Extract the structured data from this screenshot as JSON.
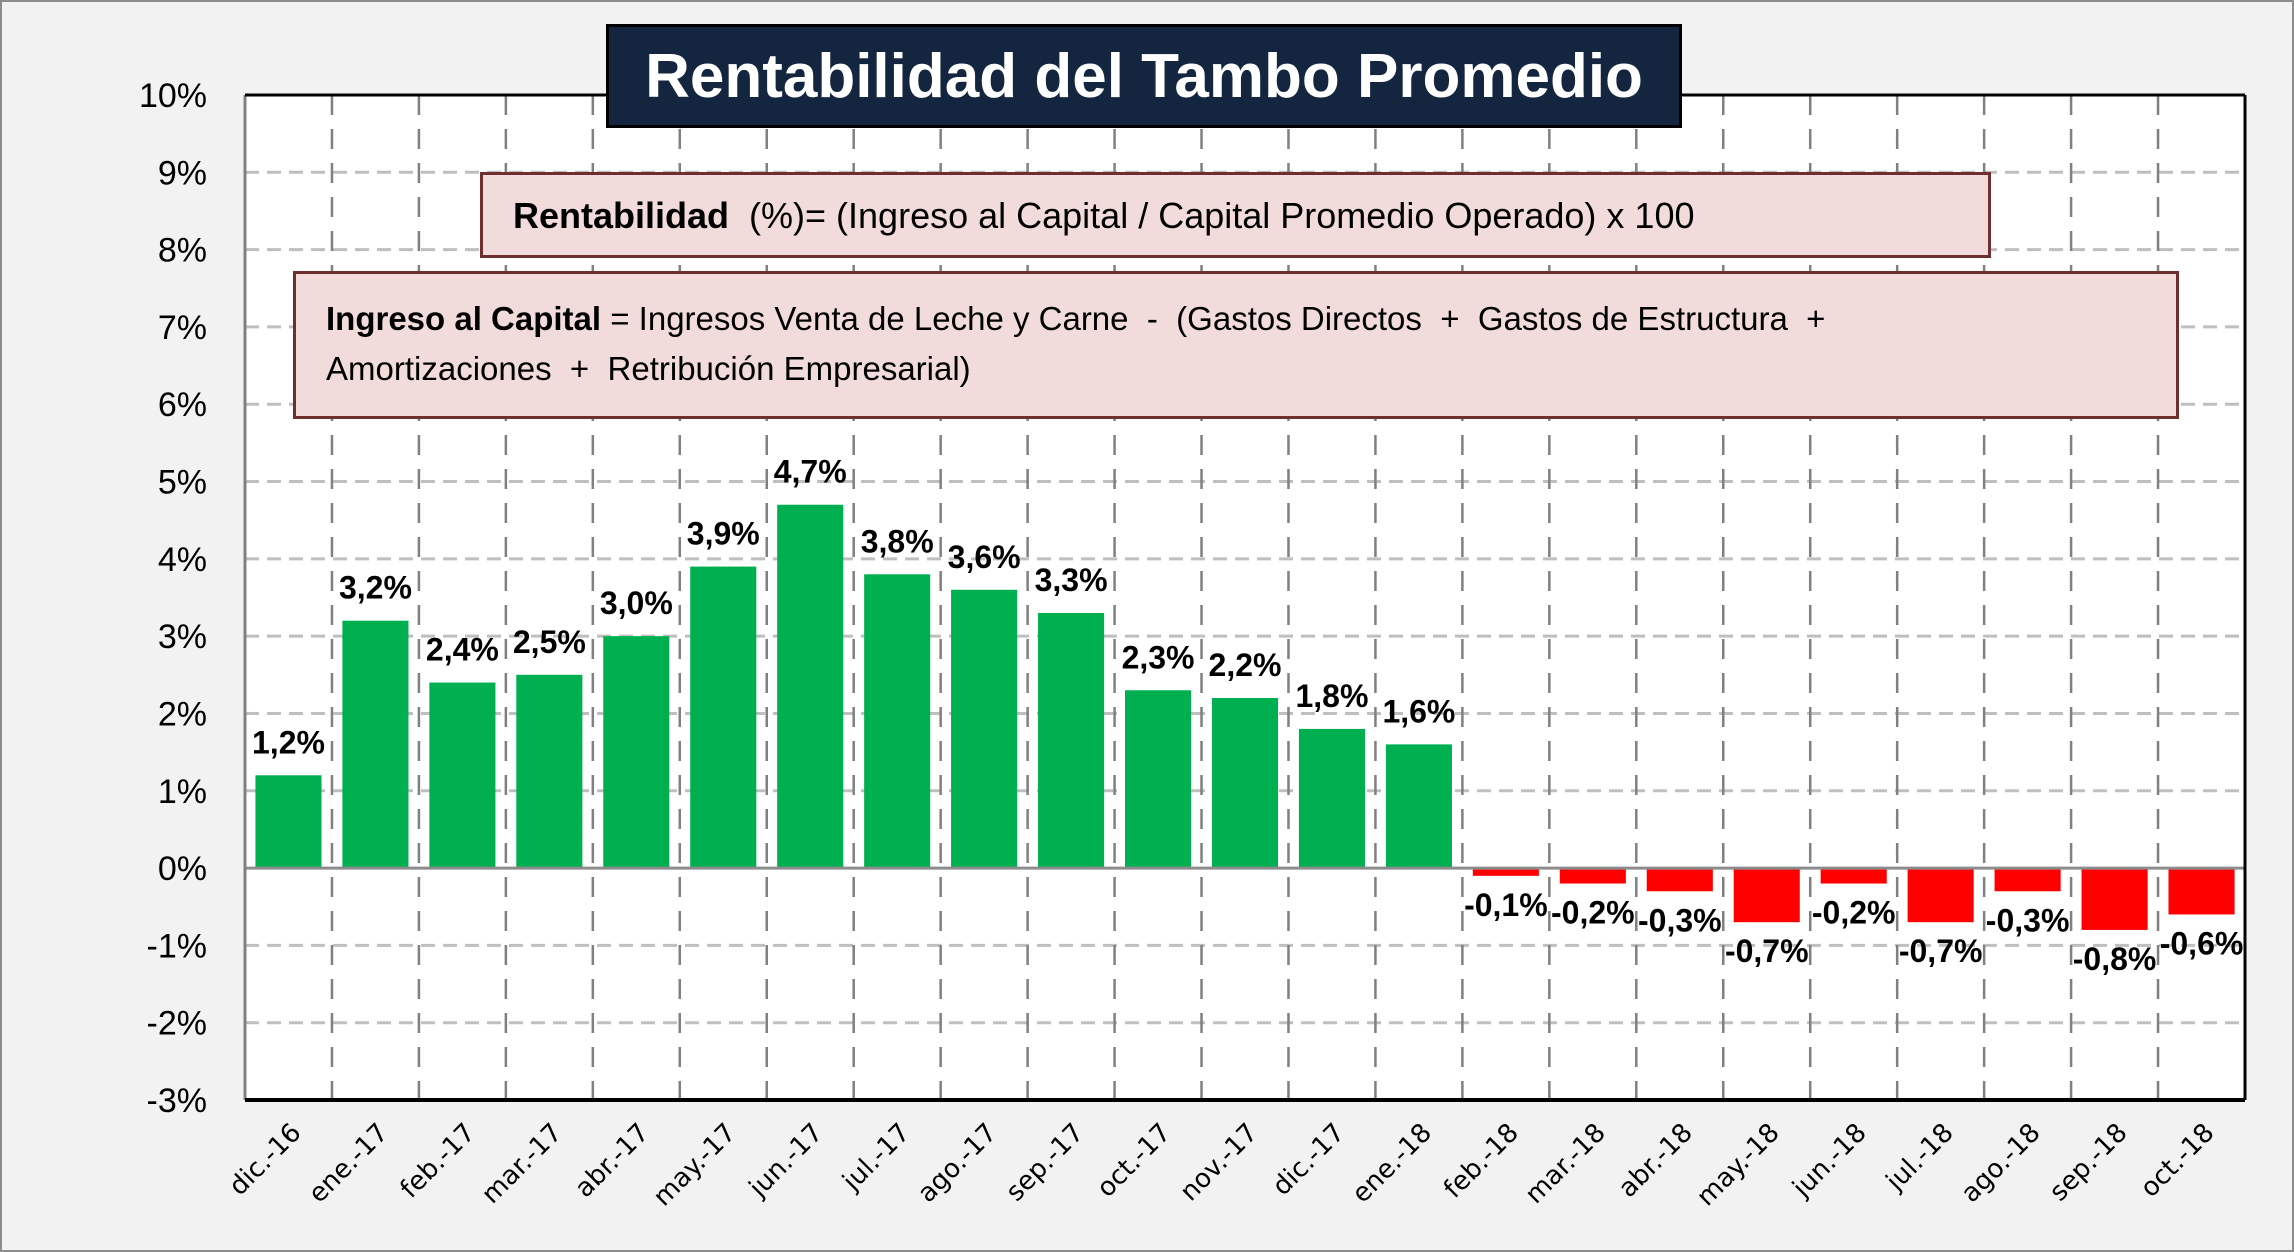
{
  "title": "Rentabilidad del Tambo Promedio",
  "formulas": {
    "rentabilidad": {
      "bold": "Rentabilidad",
      "rest": "  (%)= (Ingreso al Capital / Capital Promedio Operado) x 100"
    },
    "ingreso": {
      "bold": "Ingreso al Capital",
      "line1_rest": " = Ingresos Venta de Leche y Carne  -  (Gastos Directos  +  Gastos de Estructura  +",
      "line2": "Amortizaciones  +  Retribución Empresarial)"
    }
  },
  "colors": {
    "positive": "#00b050",
    "negative": "#ff0000",
    "title_bg": "#13253f",
    "formula_bg": "#f2dcdb",
    "formula_border": "#6f2f2f"
  },
  "chart_data": {
    "type": "bar",
    "title": "Rentabilidad del Tambo Promedio",
    "xlabel": "",
    "ylabel": "",
    "ylim": [
      -3,
      10
    ],
    "yticks": [
      10,
      9,
      8,
      7,
      6,
      5,
      4,
      3,
      2,
      1,
      0,
      -1,
      -2,
      -3
    ],
    "ytick_labels": [
      "10%",
      "9%",
      "8%",
      "7%",
      "6%",
      "5%",
      "4%",
      "3%",
      "2%",
      "1%",
      "0%",
      "-1%",
      "-2%",
      "-3%"
    ],
    "grid": true,
    "legend": "none",
    "categories": [
      "dic.-16",
      "ene.-17",
      "feb.-17",
      "mar.-17",
      "abr.-17",
      "may.-17",
      "jun.-17",
      "jul.-17",
      "ago.-17",
      "sep.-17",
      "oct.-17",
      "nov.-17",
      "dic.-17",
      "ene.-18",
      "feb.-18",
      "mar.-18",
      "abr.-18",
      "may.-18",
      "jun.-18",
      "jul.-18",
      "ago.-18",
      "sep.-18",
      "oct.-18"
    ],
    "values": [
      1.2,
      3.2,
      2.4,
      2.5,
      3.0,
      3.9,
      4.7,
      3.8,
      3.6,
      3.3,
      2.3,
      2.2,
      1.8,
      1.6,
      -0.1,
      -0.2,
      -0.3,
      -0.7,
      -0.2,
      -0.7,
      -0.3,
      -0.8,
      -0.6
    ],
    "labels": [
      "1,2%",
      "3,2%",
      "2,4%",
      "2,5%",
      "3,0%",
      "3,9%",
      "4,7%",
      "3,8%",
      "3,6%",
      "3,3%",
      "2,3%",
      "2,2%",
      "1,8%",
      "1,6%",
      "-0,1%",
      "-0,2%",
      "-0,3%",
      "-0,7%",
      "-0,2%",
      "-0,7%",
      "-0,3%",
      "-0,8%",
      "-0,6%"
    ],
    "unit": "%"
  }
}
